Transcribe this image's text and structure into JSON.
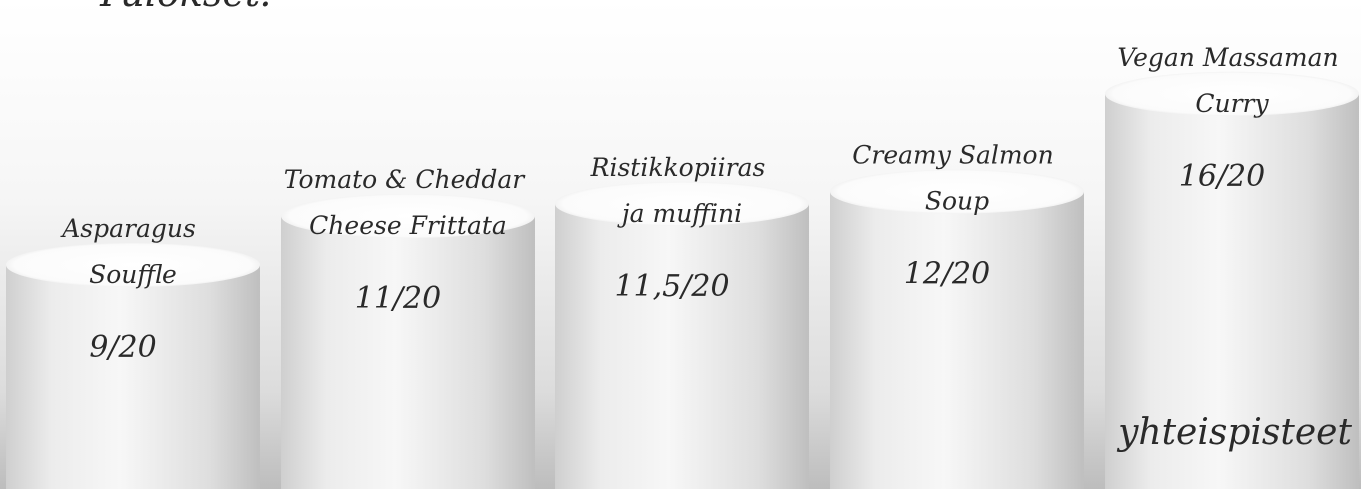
{
  "chart_data": {
    "type": "bar",
    "title": "Tulokset:",
    "categories": [
      "Asparagus Souffle",
      "Tomato & Cheddar Cheese Frittata",
      "Ristikkopiiras ja muffini",
      "Creamy Salmon Soup",
      "Vegan Massaman Curry"
    ],
    "category_lines": [
      [
        "Asparagus",
        "Souffle"
      ],
      [
        "Tomato & Cheddar",
        "Cheese Frittata"
      ],
      [
        "Ristikkopiiras",
        "ja muffini"
      ],
      [
        "Creamy Salmon",
        "Soup"
      ],
      [
        "Vegan Massaman",
        "Curry"
      ]
    ],
    "values": [
      9,
      11,
      11.5,
      12,
      16
    ],
    "value_labels": [
      "9/20",
      "11/20",
      "11,5/20",
      "12/20",
      "16/20"
    ],
    "max_score": 20,
    "footer_label": "yhteispisteet",
    "colors": {
      "cylinder_light": "#f4f4f4",
      "cylinder_dark": "#c9c9c9",
      "cylinder_top": "#ffffff",
      "text": "#2a2a2a"
    }
  }
}
